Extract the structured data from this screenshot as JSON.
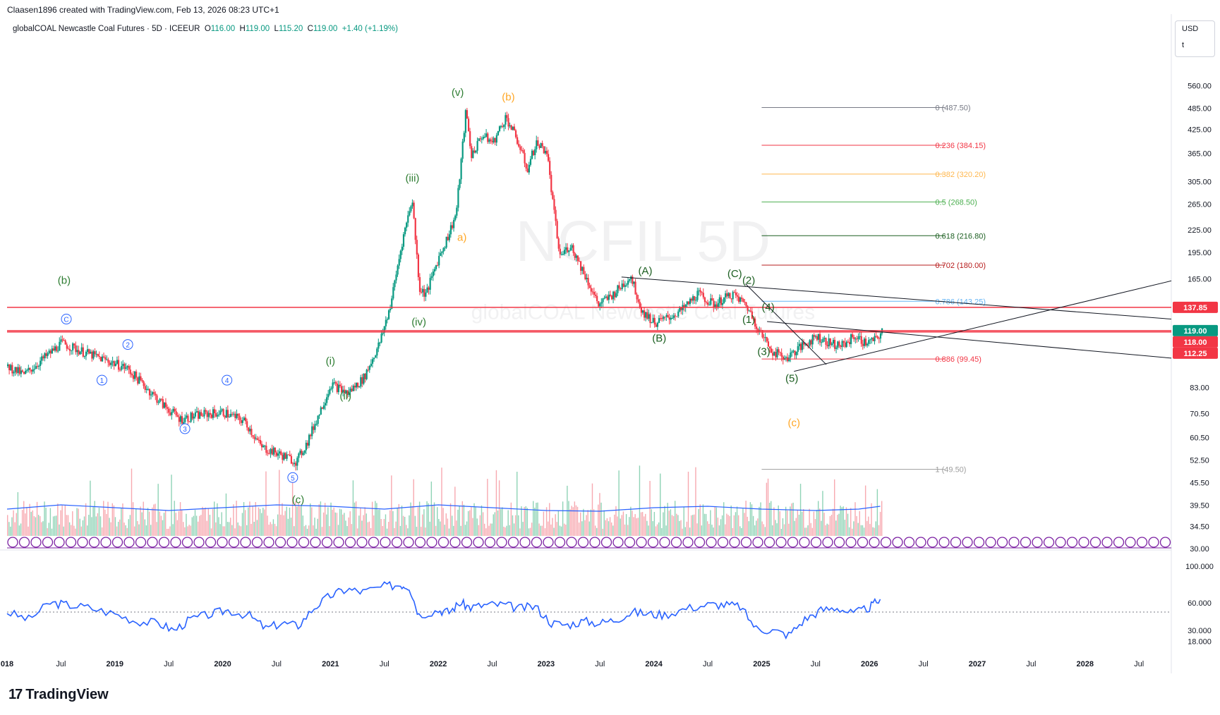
{
  "header": {
    "created": "Claasen1896 created with TradingView.com, Feb 13, 2026 08:23 UTC+1",
    "symbol": "globalCOAL Newcastle Coal Futures · 5D · ICEEUR",
    "o_label": "O",
    "o": "116.00",
    "h_label": "H",
    "h": "119.00",
    "l_label": "L",
    "l": "115.20",
    "c_label": "C",
    "c": "119.00",
    "change": "+1.40 (+1.19%)"
  },
  "currency": {
    "ccy": "USD",
    "unit": "t"
  },
  "watermark": {
    "ticker": "NCFIL 5D",
    "name": "globalCOAL Newcastle Coal Futures"
  },
  "brand": {
    "logo": "17",
    "name": "TradingView"
  },
  "colors": {
    "up": "#089981",
    "down": "#f23645",
    "green_label": "#2e7d32",
    "orange_label": "#ffa726",
    "blue": "#2962ff",
    "rsi": "#2962ff",
    "hline": "#f23645"
  },
  "chart_data": [
    {
      "type": "candlestick",
      "scale": "log",
      "ylim": [
        30,
        630
      ],
      "y_ticks": [
        "560.00",
        "485.00",
        "425.00",
        "365.00",
        "305.00",
        "265.00",
        "225.00",
        "195.00",
        "165.00",
        "83.00",
        "70.50",
        "60.50",
        "52.50",
        "45.50",
        "39.50",
        "34.50",
        "30.00"
      ],
      "y_tick_values": [
        560,
        485,
        425,
        365,
        305,
        265,
        225,
        195,
        165,
        83,
        70.5,
        60.5,
        52.5,
        45.5,
        39.5,
        34.5,
        30
      ],
      "x_ticks": [
        "018",
        "Jul",
        "2019",
        "Jul",
        "2020",
        "Jul",
        "2021",
        "Jul",
        "2022",
        "Jul",
        "2023",
        "Jul",
        "2024",
        "Jul",
        "2025",
        "Jul",
        "2026",
        "Jul",
        "2027",
        "Jul",
        "2028",
        "Jul"
      ],
      "x_tick_years": [
        2018.0,
        2018.5,
        2019.0,
        2019.5,
        2020.0,
        2020.5,
        2021.0,
        2021.5,
        2022.0,
        2022.5,
        2023.0,
        2023.5,
        2024.0,
        2024.5,
        2025.0,
        2025.5,
        2026.0,
        2026.5,
        2027.0,
        2027.5,
        2028.0,
        2028.5
      ],
      "xlim": [
        2018.0,
        2028.8
      ],
      "price_path": [
        [
          2018.0,
          95
        ],
        [
          2018.15,
          90
        ],
        [
          2018.3,
          98
        ],
        [
          2018.5,
          110
        ],
        [
          2018.7,
          104
        ],
        [
          2018.9,
          99
        ],
        [
          2019.1,
          94
        ],
        [
          2019.25,
          85
        ],
        [
          2019.45,
          74
        ],
        [
          2019.6,
          68
        ],
        [
          2019.8,
          70
        ],
        [
          2020.0,
          71
        ],
        [
          2020.2,
          67
        ],
        [
          2020.35,
          57
        ],
        [
          2020.55,
          54
        ],
        [
          2020.68,
          52
        ],
        [
          2020.78,
          59
        ],
        [
          2020.9,
          72
        ],
        [
          2021.0,
          85
        ],
        [
          2021.15,
          80
        ],
        [
          2021.3,
          88
        ],
        [
          2021.45,
          110
        ],
        [
          2021.55,
          140
        ],
        [
          2021.66,
          210
        ],
        [
          2021.75,
          275
        ],
        [
          2021.82,
          155
        ],
        [
          2021.88,
          150
        ],
        [
          2022.0,
          190
        ],
        [
          2022.08,
          215
        ],
        [
          2022.16,
          250
        ],
        [
          2022.25,
          480
        ],
        [
          2022.3,
          360
        ],
        [
          2022.4,
          410
        ],
        [
          2022.5,
          390
        ],
        [
          2022.62,
          460
        ],
        [
          2022.72,
          400
        ],
        [
          2022.82,
          330
        ],
        [
          2022.9,
          390
        ],
        [
          2023.0,
          370
        ],
        [
          2023.06,
          260
        ],
        [
          2023.12,
          190
        ],
        [
          2023.22,
          205
        ],
        [
          2023.35,
          170
        ],
        [
          2023.48,
          140
        ],
        [
          2023.62,
          150
        ],
        [
          2023.78,
          168
        ],
        [
          2023.88,
          135
        ],
        [
          2024.0,
          125
        ],
        [
          2024.1,
          128
        ],
        [
          2024.25,
          135
        ],
        [
          2024.4,
          150
        ],
        [
          2024.55,
          140
        ],
        [
          2024.72,
          150
        ],
        [
          2024.85,
          140
        ],
        [
          2025.0,
          115
        ],
        [
          2025.1,
          104
        ],
        [
          2025.22,
          100
        ],
        [
          2025.35,
          107
        ],
        [
          2025.5,
          115
        ],
        [
          2025.62,
          110
        ],
        [
          2025.75,
          108
        ],
        [
          2025.85,
          115
        ],
        [
          2025.95,
          110
        ],
        [
          2026.05,
          112
        ],
        [
          2026.12,
          119
        ]
      ],
      "last_price": "119.00",
      "price_labels": [
        {
          "label": "137.85",
          "value": 137.85,
          "color": "#f23645"
        },
        {
          "label": "119.00",
          "value": 119.0,
          "color": "#089981"
        },
        {
          "label": "118.00",
          "value": 118.0,
          "color": "#f23645"
        },
        {
          "label": "112.25",
          "value": 112.25,
          "color": "#f23645"
        }
      ],
      "horizontal_lines": [
        137.85,
        119.0,
        118.0
      ],
      "fibonacci": {
        "start_x": 2025.0,
        "end_x": 2026.7,
        "levels": [
          {
            "label": "0 (487.50)",
            "value": 487.5,
            "color": "#787b86"
          },
          {
            "label": "0.236 (384.15)",
            "value": 384.15,
            "color": "#f23645"
          },
          {
            "label": "0.382 (320.20)",
            "value": 320.2,
            "color": "#ffb74d"
          },
          {
            "label": "0.5 (268.50)",
            "value": 268.5,
            "color": "#4caf50"
          },
          {
            "label": "0.618 (216.80)",
            "value": 216.8,
            "color": "#1b5e20"
          },
          {
            "label": "0.702 (180.00)",
            "value": 180.0,
            "color": "#b71c1c"
          },
          {
            "label": "0.786 (143.25)",
            "value": 143.25,
            "color": "#64b5f6"
          },
          {
            "label": "0.886 (99.45)",
            "value": 99.45,
            "color": "#f23645"
          },
          {
            "label": "1 (49.50)",
            "value": 49.5,
            "color": "#9e9e9e"
          }
        ]
      },
      "wave_labels": [
        {
          "label": "(b)",
          "x": 2018.53,
          "y": 160,
          "color": "#2e7d32"
        },
        {
          "label": "C",
          "x": 2018.55,
          "y": 128,
          "color": "#2962ff",
          "circled": true
        },
        {
          "label": "2",
          "x": 2019.12,
          "y": 109,
          "color": "#2962ff",
          "circled": true
        },
        {
          "label": "1",
          "x": 2018.88,
          "y": 87,
          "color": "#2962ff",
          "circled": true
        },
        {
          "label": "4",
          "x": 2020.04,
          "y": 87,
          "color": "#2962ff",
          "circled": true
        },
        {
          "label": "3",
          "x": 2019.65,
          "y": 64,
          "color": "#2962ff",
          "circled": true
        },
        {
          "label": "5",
          "x": 2020.65,
          "y": 47,
          "color": "#2962ff",
          "circled": true
        },
        {
          "label": "(c)",
          "x": 2020.7,
          "y": 40,
          "color": "#2e7d32"
        },
        {
          "label": "(i)",
          "x": 2021.0,
          "y": 96,
          "color": "#2e7d32"
        },
        {
          "label": "(ii)",
          "x": 2021.14,
          "y": 77,
          "color": "#2e7d32"
        },
        {
          "label": "(iii)",
          "x": 2021.76,
          "y": 305,
          "color": "#2e7d32"
        },
        {
          "label": "(iv)",
          "x": 2021.82,
          "y": 123,
          "color": "#2e7d32"
        },
        {
          "label": "a)",
          "x": 2022.22,
          "y": 210,
          "color": "#ffa726"
        },
        {
          "label": "(v)",
          "x": 2022.18,
          "y": 525,
          "color": "#2e7d32"
        },
        {
          "label": "(b)",
          "x": 2022.65,
          "y": 510,
          "color": "#ffa726"
        },
        {
          "label": "(A)",
          "x": 2023.92,
          "y": 170,
          "color": "#1b5e20"
        },
        {
          "label": "(B)",
          "x": 2024.05,
          "y": 111,
          "color": "#1b5e20"
        },
        {
          "label": "(C)",
          "x": 2024.75,
          "y": 167,
          "color": "#1b5e20"
        },
        {
          "label": "(2)",
          "x": 2024.88,
          "y": 160,
          "color": "#1b5e20"
        },
        {
          "label": "(4)",
          "x": 2025.06,
          "y": 135,
          "color": "#1b5e20"
        },
        {
          "label": "(1)",
          "x": 2024.88,
          "y": 125,
          "color": "#1b5e20"
        },
        {
          "label": "(3)",
          "x": 2025.02,
          "y": 102,
          "color": "#1b5e20"
        },
        {
          "label": "(5)",
          "x": 2025.28,
          "y": 86,
          "color": "#1b5e20"
        },
        {
          "label": "(c)",
          "x": 2025.3,
          "y": 65,
          "color": "#ffa726"
        }
      ],
      "trend_lines": [
        {
          "from": [
            2023.7,
            167
          ],
          "to": [
            2028.8,
            128
          ]
        },
        {
          "from": [
            2024.85,
            160
          ],
          "to": [
            2025.6,
            96
          ]
        },
        {
          "from": [
            2025.05,
            126
          ],
          "to": [
            2028.8,
            100
          ]
        },
        {
          "from": [
            2025.3,
            92
          ],
          "to": [
            2028.8,
            163
          ]
        }
      ]
    },
    {
      "type": "line",
      "title": "",
      "ylim": [
        10,
        110
      ],
      "y_ticks": [
        "100.000",
        "60.000",
        "30.000",
        "18.000"
      ],
      "y_tick_values": [
        100,
        60,
        30,
        18
      ],
      "reference_line": 50,
      "series": [
        {
          "x": [
            2018.0,
            2018.2,
            2018.4,
            2018.55,
            2018.75,
            2019.0,
            2019.2,
            2019.4,
            2019.55,
            2019.7,
            2019.9,
            2020.05,
            2020.25,
            2020.4,
            2020.55,
            2020.7,
            2020.85,
            2021.0,
            2021.15,
            2021.3,
            2021.5,
            2021.65,
            2021.73,
            2021.82,
            2022.0,
            2022.1,
            2022.2,
            2022.3,
            2022.45,
            2022.6,
            2022.75,
            2022.9,
            2023.05,
            2023.2,
            2023.35,
            2023.5,
            2023.65,
            2023.8,
            2023.95,
            2024.1,
            2024.3,
            2024.5,
            2024.65,
            2024.8,
            2024.95,
            2025.1,
            2025.25,
            2025.4,
            2025.55,
            2025.7,
            2025.85,
            2026.0,
            2026.1
          ],
          "values": [
            50,
            42,
            60,
            58,
            55,
            48,
            40,
            38,
            30,
            42,
            48,
            52,
            46,
            32,
            38,
            35,
            55,
            68,
            75,
            72,
            78,
            80,
            78,
            47,
            52,
            50,
            60,
            55,
            58,
            58,
            54,
            56,
            38,
            36,
            40,
            38,
            42,
            50,
            48,
            47,
            54,
            58,
            58,
            56,
            32,
            30,
            25,
            42,
            52,
            55,
            48,
            55,
            64
          ]
        }
      ]
    },
    {
      "type": "bar",
      "title": "",
      "overlay": "volume_ma",
      "volume_ma_path": [
        [
          2018.0,
          38
        ],
        [
          2018.5,
          44
        ],
        [
          2019.0,
          40
        ],
        [
          2019.5,
          36
        ],
        [
          2020.0,
          40
        ],
        [
          2020.5,
          44
        ],
        [
          2021.0,
          42
        ],
        [
          2021.5,
          38
        ],
        [
          2022.0,
          44
        ],
        [
          2022.5,
          40
        ],
        [
          2023.0,
          36
        ],
        [
          2023.5,
          35
        ],
        [
          2024.0,
          40
        ],
        [
          2024.5,
          42
        ],
        [
          2025.0,
          38
        ],
        [
          2025.5,
          36
        ],
        [
          2025.9,
          38
        ],
        [
          2026.1,
          42
        ]
      ]
    }
  ]
}
